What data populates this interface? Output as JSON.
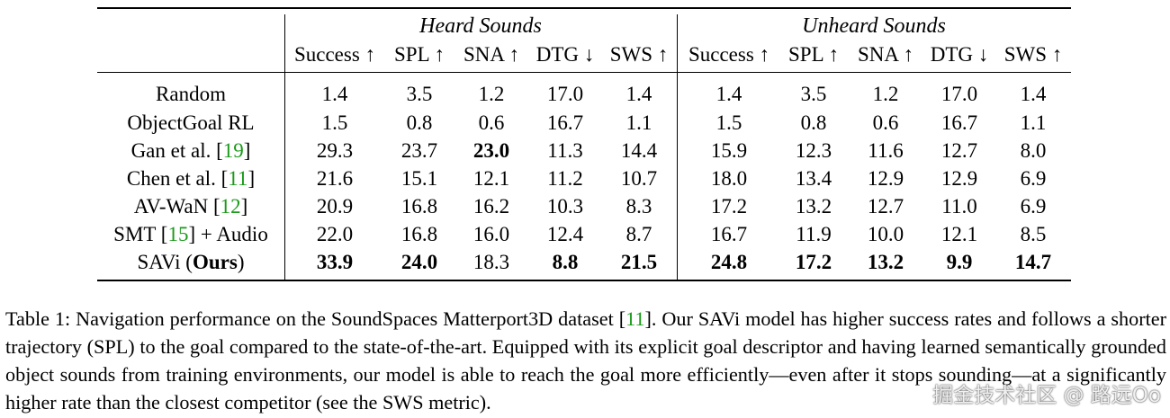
{
  "table": {
    "group_headers": [
      "Heard Sounds",
      "Unheard Sounds"
    ],
    "column_headers": [
      "Success ↑",
      "SPL ↑",
      "SNA ↑",
      "DTG ↓",
      "SWS ↑",
      "Success ↑",
      "SPL ↑",
      "SNA ↑",
      "DTG ↓",
      "SWS ↑"
    ],
    "rows": [
      {
        "name": "Random",
        "cite": "",
        "suffix": "",
        "values": [
          "1.4",
          "3.5",
          "1.2",
          "17.0",
          "1.4",
          "1.4",
          "3.5",
          "1.2",
          "17.0",
          "1.4"
        ]
      },
      {
        "name": "ObjectGoal RL",
        "cite": "",
        "suffix": "",
        "values": [
          "1.5",
          "0.8",
          "0.6",
          "16.7",
          "1.1",
          "1.5",
          "0.8",
          "0.6",
          "16.7",
          "1.1"
        ]
      },
      {
        "name": "Gan et al. [",
        "cite": "19",
        "suffix": "]",
        "values": [
          "29.3",
          "23.7",
          "23.0",
          "11.3",
          "14.4",
          "15.9",
          "12.3",
          "11.6",
          "12.7",
          "8.0"
        ]
      },
      {
        "name": "Chen et al. [",
        "cite": "11",
        "suffix": "]",
        "values": [
          "21.6",
          "15.1",
          "12.1",
          "11.2",
          "10.7",
          "18.0",
          "13.4",
          "12.9",
          "12.9",
          "6.9"
        ]
      },
      {
        "name": "AV-WaN [",
        "cite": "12",
        "suffix": "]",
        "values": [
          "20.9",
          "16.8",
          "16.2",
          "10.3",
          "8.3",
          "17.2",
          "13.2",
          "12.7",
          "11.0",
          "6.9"
        ]
      },
      {
        "name": "SMT [",
        "cite": "15",
        "suffix": "] + Audio",
        "values": [
          "22.0",
          "16.8",
          "16.0",
          "12.4",
          "8.7",
          "16.7",
          "11.9",
          "10.0",
          "12.1",
          "8.5"
        ]
      },
      {
        "name": "SAVi (",
        "name_bold": "Ours",
        "suffix": ")",
        "values": [
          "33.9",
          "24.0",
          "18.3",
          "8.8",
          "21.5",
          "24.8",
          "17.2",
          "13.2",
          "9.9",
          "14.7"
        ]
      }
    ]
  },
  "caption": {
    "label": "Table 1: Navigation performance on the SoundSpaces Matterport3D dataset [",
    "cite": "11",
    "text": "]. Our SAVi model has higher success rates and follows a shorter trajectory (SPL) to the goal compared to the state-of-the-art. Equipped with its explicit goal descriptor and having learned semantically grounded object sounds from training environments, our model is able to reach the goal more efficiently—even after it stops sounding—at a significantly higher rate than the closest competitor (see the SWS metric)."
  },
  "watermark": "掘金技术社区 @ 路远Oo"
}
